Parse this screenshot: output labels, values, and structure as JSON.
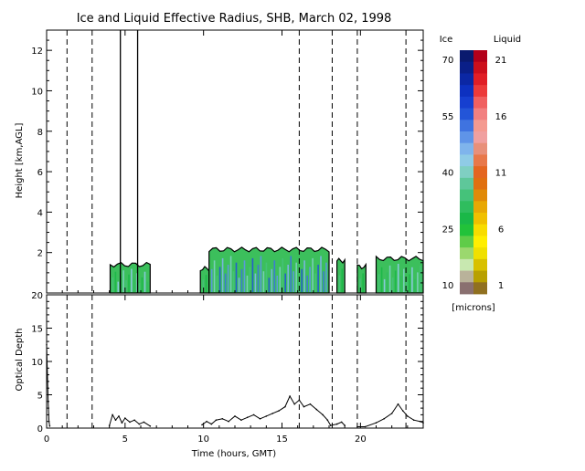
{
  "chart_data": [
    {
      "type": "heatmap",
      "title": "Ice and Liquid Effective Radius, SHB, March 02, 1998",
      "xlabel": "",
      "ylabel": "Height [km,AGL]",
      "xlim": [
        0,
        24
      ],
      "ylim": [
        0,
        13
      ],
      "x_ticks": [
        0,
        5,
        10,
        15,
        20
      ],
      "y_ticks": [
        2,
        4,
        6,
        8,
        10,
        12
      ],
      "grid": false,
      "vertical_dashed_lines_hours": [
        1.3,
        2.9,
        16.1,
        18.2,
        19.8,
        22.9
      ],
      "vertical_solid_lines_hours": [
        4.7,
        5.8
      ],
      "cloud_segments": [
        {
          "start": 4.05,
          "end": 6.6,
          "top_km": 1.4,
          "dominant": "green"
        },
        {
          "start": 9.8,
          "end": 10.35,
          "top_km": 1.2,
          "dominant": "green"
        },
        {
          "start": 10.35,
          "end": 18.0,
          "top_km": 2.15,
          "dominant": "blue-green"
        },
        {
          "start": 18.5,
          "end": 19.0,
          "top_km": 1.6,
          "dominant": "green"
        },
        {
          "start": 19.8,
          "end": 20.35,
          "top_km": 1.3,
          "dominant": "green"
        },
        {
          "start": 21.0,
          "end": 24.0,
          "top_km": 1.7,
          "dominant": "green"
        }
      ]
    },
    {
      "type": "line",
      "title": "",
      "xlabel": "Time (hours, GMT)",
      "ylabel": "Optical Depth",
      "xlim": [
        0,
        24
      ],
      "ylim": [
        0,
        20
      ],
      "x_ticks": [
        0,
        5,
        10,
        15,
        20
      ],
      "y_ticks": [
        0,
        5,
        10,
        15,
        20
      ],
      "grid": false,
      "series": [
        {
          "name": "",
          "points": [
            [
              0.0,
              12.5
            ],
            [
              0.05,
              8
            ],
            [
              0.1,
              4
            ],
            [
              0.15,
              1
            ],
            [
              0.2,
              0.3
            ],
            [
              4.0,
              0.4
            ],
            [
              4.2,
              2.0
            ],
            [
              4.4,
              1.2
            ],
            [
              4.6,
              1.8
            ],
            [
              4.8,
              0.8
            ],
            [
              5.0,
              1.5
            ],
            [
              5.3,
              0.9
            ],
            [
              5.6,
              1.2
            ],
            [
              5.9,
              0.6
            ],
            [
              6.2,
              0.9
            ],
            [
              6.6,
              0.3
            ],
            [
              9.9,
              0.5
            ],
            [
              10.2,
              1.0
            ],
            [
              10.5,
              0.6
            ],
            [
              10.8,
              1.2
            ],
            [
              11.2,
              1.4
            ],
            [
              11.6,
              1.0
            ],
            [
              12.0,
              1.8
            ],
            [
              12.4,
              1.2
            ],
            [
              12.8,
              1.6
            ],
            [
              13.2,
              2.0
            ],
            [
              13.6,
              1.4
            ],
            [
              14.0,
              1.8
            ],
            [
              14.4,
              2.2
            ],
            [
              14.8,
              2.6
            ],
            [
              15.2,
              3.2
            ],
            [
              15.5,
              4.8
            ],
            [
              15.8,
              3.6
            ],
            [
              16.1,
              4.2
            ],
            [
              16.4,
              3.2
            ],
            [
              16.8,
              3.6
            ],
            [
              17.2,
              2.8
            ],
            [
              17.6,
              2.0
            ],
            [
              17.9,
              1.2
            ],
            [
              18.1,
              0.4
            ],
            [
              18.5,
              0.6
            ],
            [
              18.8,
              0.9
            ],
            [
              19.0,
              0.4
            ],
            [
              19.8,
              0.2
            ],
            [
              20.3,
              0.2
            ],
            [
              21.0,
              0.8
            ],
            [
              21.5,
              1.4
            ],
            [
              22.0,
              2.2
            ],
            [
              22.4,
              3.6
            ],
            [
              22.7,
              2.6
            ],
            [
              23.0,
              1.8
            ],
            [
              23.4,
              1.2
            ],
            [
              23.8,
              1.0
            ],
            [
              24.0,
              0.8
            ]
          ]
        }
      ]
    }
  ],
  "colorbar": {
    "ice_label": "Ice",
    "liquid_label": "Liquid",
    "ice_ticks": [
      "70",
      "55",
      "40",
      "25",
      "10"
    ],
    "liquid_ticks": [
      "21",
      "16",
      "11",
      "6",
      "1"
    ],
    "unit": "[microns]",
    "ice_colors": [
      "#0a1a6e",
      "#0a1f88",
      "#0b27a4",
      "#0d31c0",
      "#163fd0",
      "#2355d8",
      "#3f73e0",
      "#5f94e8",
      "#7fb4ec",
      "#8fcbe6",
      "#7fcfc2",
      "#5ec79a",
      "#45c27a",
      "#2fbd5e",
      "#1ab848",
      "#22c23a",
      "#5fcc48",
      "#9bd86e",
      "#c8e8b0",
      "#b9b29a",
      "#8a7070"
    ],
    "liquid_colors": [
      "#b3001a",
      "#cc0f1c",
      "#e01e26",
      "#ec3a3a",
      "#f06060",
      "#f28080",
      "#f49a90",
      "#f0a0a0",
      "#e8907a",
      "#e8784a",
      "#e46620",
      "#e07010",
      "#e08a08",
      "#e8a804",
      "#f0c000",
      "#f8dc00",
      "#ffee00",
      "#f0e000",
      "#d8c000",
      "#b8a000",
      "#907020"
    ]
  }
}
